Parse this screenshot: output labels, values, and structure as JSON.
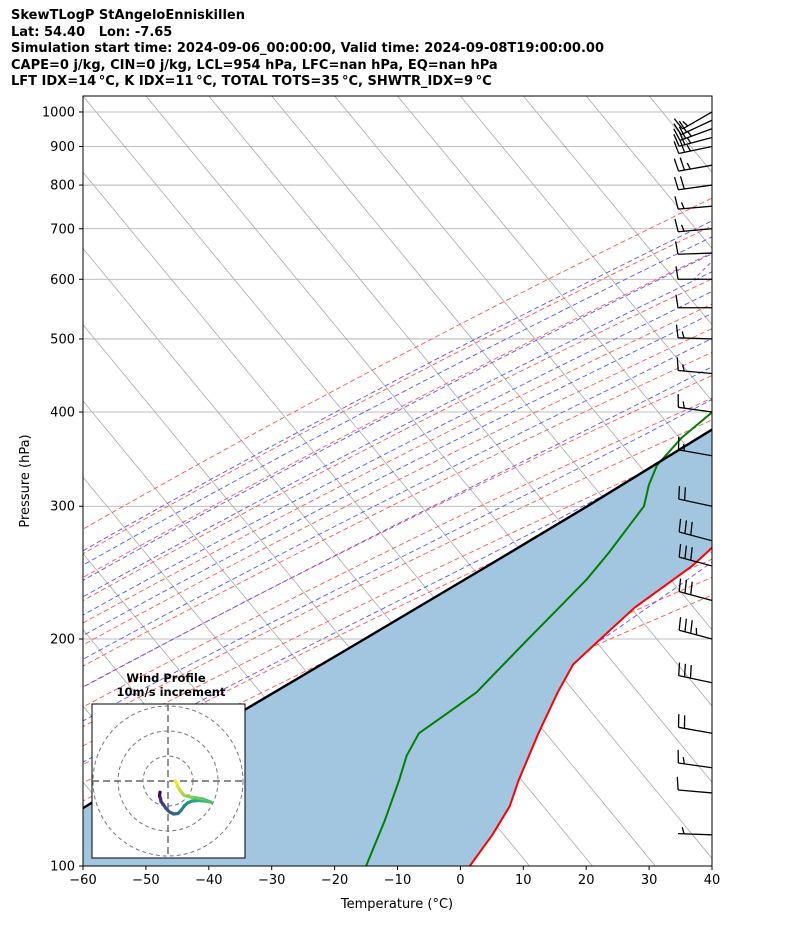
{
  "header": {
    "line1": "SkewTLogP StAngeloEnniskillen",
    "line2": "Lat: 54.40   Lon: -7.65",
    "line3": "Simulation start time: 2024-09-06_00:00:00, Valid time: 2024-09-08T19:00:00.00",
    "line4": "CAPE=0 j/kg, CIN=0 j/kg, LCL=954 hPa, LFC=nan hPa, EQ=nan hPa",
    "line5": "LFT IDX=14 °C, K IDX=11 °C, TOTAL TOTS=35 °C, SHWTR_IDX=9 °C"
  },
  "chart_data": {
    "type": "line",
    "subtype": "skew-T log-P",
    "xlabel": "Temperature (°C)",
    "ylabel": "Pressure (hPa)",
    "xlim": [
      -60,
      40
    ],
    "ylim": [
      1050,
      100
    ],
    "y_scale": "log",
    "x_ticks": [
      "−60",
      "−50",
      "−40",
      "−30",
      "−20",
      "−10",
      "0",
      "10",
      "20",
      "30",
      "40"
    ],
    "y_ticks": [
      "100",
      "200",
      "300",
      "400",
      "500",
      "600",
      "700",
      "800",
      "900",
      "1000"
    ],
    "grid": true,
    "colors": {
      "temperature": "#ff0000",
      "dewpoint": "#008000",
      "parcel": "#000000",
      "cape_fill": "#a2c6e0",
      "dry_adiabat": "#ff5555",
      "moist_adiabat": "#5555ff",
      "mixing_ratio": "#9944cc",
      "isotherm": "#aaaaaa"
    },
    "series": [
      {
        "role": "temperature",
        "points": [
          [
            13.3,
            1000
          ],
          [
            12.0,
            980
          ],
          [
            11.5,
            960
          ],
          [
            13.0,
            940
          ],
          [
            14.3,
            920
          ],
          [
            15.1,
            880
          ],
          [
            15.4,
            850
          ],
          [
            15.3,
            800
          ],
          [
            14.8,
            750
          ],
          [
            14.3,
            700
          ],
          [
            13.0,
            600
          ],
          [
            12.0,
            550
          ],
          [
            10.7,
            500
          ],
          [
            8.0,
            450
          ],
          [
            5.3,
            400
          ],
          [
            3.0,
            360
          ],
          [
            1.0,
            320
          ],
          [
            0.0,
            300
          ],
          [
            -2.5,
            250
          ],
          [
            -6.2,
            220
          ],
          [
            -7.5,
            200
          ],
          [
            -8.5,
            185
          ],
          [
            -7.3,
            170
          ],
          [
            -5.0,
            150
          ],
          [
            -2.0,
            130
          ],
          [
            0.0,
            120
          ],
          [
            1.0,
            110
          ],
          [
            1.5,
            100
          ]
        ]
      },
      {
        "role": "dewpoint",
        "points": [
          [
            10.5,
            1000
          ],
          [
            10.8,
            970
          ],
          [
            3.0,
            920
          ],
          [
            2.7,
            900
          ],
          [
            6.0,
            860
          ],
          [
            11.0,
            830
          ],
          [
            11.2,
            800
          ],
          [
            7.0,
            740
          ],
          [
            -3.0,
            670
          ],
          [
            -5.0,
            630
          ],
          [
            -8.0,
            580
          ],
          [
            -12.0,
            520
          ],
          [
            -15.0,
            460
          ],
          [
            -19.0,
            410
          ],
          [
            -21.0,
            370
          ],
          [
            -21.3,
            340
          ],
          [
            -20.0,
            320
          ],
          [
            -18.0,
            300
          ],
          [
            -17.5,
            260
          ],
          [
            -17.5,
            240
          ],
          [
            -18.2,
            220
          ],
          [
            -19.0,
            200
          ],
          [
            -19.8,
            180
          ],
          [
            -20.2,
            170
          ],
          [
            -22.0,
            160
          ],
          [
            -24.0,
            150
          ],
          [
            -23.0,
            140
          ],
          [
            -21.0,
            130
          ],
          [
            -18.0,
            115
          ],
          [
            -15.0,
            100
          ]
        ]
      },
      {
        "role": "parcel",
        "points": [
          [
            13.3,
            1000
          ],
          [
            11.4,
            954
          ],
          [
            10.0,
            900
          ],
          [
            7.6,
            800
          ],
          [
            4.5,
            700
          ],
          [
            0.0,
            600
          ],
          [
            -6.0,
            500
          ],
          [
            -15.0,
            400
          ],
          [
            -27.0,
            300
          ],
          [
            -35.0,
            250
          ],
          [
            -45.0,
            200
          ],
          [
            -58.0,
            150
          ],
          [
            -75.0,
            100
          ]
        ]
      }
    ],
    "wind_barbs": [
      {
        "pressure": 1000,
        "speed_kt": 15,
        "dir_deg": 240
      },
      {
        "pressure": 975,
        "speed_kt": 20,
        "dir_deg": 245
      },
      {
        "pressure": 950,
        "speed_kt": 25,
        "dir_deg": 250
      },
      {
        "pressure": 925,
        "speed_kt": 25,
        "dir_deg": 255
      },
      {
        "pressure": 900,
        "speed_kt": 25,
        "dir_deg": 258
      },
      {
        "pressure": 850,
        "speed_kt": 25,
        "dir_deg": 260
      },
      {
        "pressure": 800,
        "speed_kt": 20,
        "dir_deg": 262
      },
      {
        "pressure": 750,
        "speed_kt": 15,
        "dir_deg": 265
      },
      {
        "pressure": 700,
        "speed_kt": 15,
        "dir_deg": 265
      },
      {
        "pressure": 650,
        "speed_kt": 10,
        "dir_deg": 268
      },
      {
        "pressure": 600,
        "speed_kt": 10,
        "dir_deg": 270
      },
      {
        "pressure": 550,
        "speed_kt": 10,
        "dir_deg": 270
      },
      {
        "pressure": 500,
        "speed_kt": 15,
        "dir_deg": 272
      },
      {
        "pressure": 450,
        "speed_kt": 15,
        "dir_deg": 275
      },
      {
        "pressure": 400,
        "speed_kt": 15,
        "dir_deg": 278
      },
      {
        "pressure": 350,
        "speed_kt": 15,
        "dir_deg": 280
      },
      {
        "pressure": 300,
        "speed_kt": 20,
        "dir_deg": 282
      },
      {
        "pressure": 270,
        "speed_kt": 30,
        "dir_deg": 285
      },
      {
        "pressure": 250,
        "speed_kt": 30,
        "dir_deg": 285
      },
      {
        "pressure": 225,
        "speed_kt": 30,
        "dir_deg": 285
      },
      {
        "pressure": 200,
        "speed_kt": 35,
        "dir_deg": 285
      },
      {
        "pressure": 175,
        "speed_kt": 30,
        "dir_deg": 282
      },
      {
        "pressure": 150,
        "speed_kt": 20,
        "dir_deg": 280
      },
      {
        "pressure": 135,
        "speed_kt": 15,
        "dir_deg": 278
      },
      {
        "pressure": 125,
        "speed_kt": 10,
        "dir_deg": 275
      },
      {
        "pressure": 110,
        "speed_kt": 5,
        "dir_deg": 272
      }
    ],
    "hodograph": {
      "title": "Wind Profile",
      "subtitle": "10m/s increment",
      "rings_ms": [
        10,
        20,
        30
      ],
      "points_ms": [
        [
          -3.2,
          -4.5
        ],
        [
          -3.4,
          -6.0
        ],
        [
          -3.0,
          -7.0
        ],
        [
          -2.8,
          -8.2
        ],
        [
          -1.8,
          -9.5
        ],
        [
          -0.8,
          -11.0
        ],
        [
          0.6,
          -12.4
        ],
        [
          2.3,
          -13.2
        ],
        [
          4.0,
          -13.0
        ],
        [
          5.2,
          -11.8
        ],
        [
          6.5,
          -10.0
        ],
        [
          7.8,
          -8.8
        ],
        [
          9.6,
          -8.0
        ],
        [
          12.0,
          -7.8
        ],
        [
          15.0,
          -8.0
        ],
        [
          17.2,
          -8.5
        ],
        [
          14.0,
          -7.2
        ],
        [
          9.5,
          -6.5
        ],
        [
          6.5,
          -5.8
        ],
        [
          5.0,
          -4.0
        ],
        [
          4.0,
          -2.5
        ],
        [
          3.4,
          -0.8
        ],
        [
          2.8,
          0.2
        ]
      ],
      "colormap": "viridis"
    }
  }
}
